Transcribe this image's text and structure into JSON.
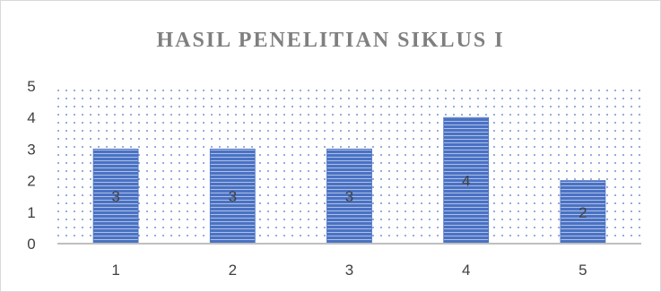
{
  "chart_data": {
    "type": "bar",
    "title": "HASIL PENELITIAN SIKLUS I",
    "categories": [
      "1",
      "2",
      "3",
      "4",
      "5"
    ],
    "values": [
      3,
      3,
      3,
      4,
      2
    ],
    "data_labels": [
      "3",
      "3",
      "3",
      "4",
      "2"
    ],
    "y_ticks": [
      "0",
      "1",
      "2",
      "3",
      "4",
      "5"
    ],
    "ylim": [
      0,
      5
    ],
    "xlabel": "",
    "ylabel": "",
    "grid": false,
    "legend": "none",
    "colors": {
      "bar_fill": "#4a72c4",
      "bar_stripe": "#ffffff",
      "plot_dots": "#4a72c4",
      "axis": "#bfbfbf",
      "title": "#7f7f7f",
      "tick_text": "#404040",
      "label_text": "#404040"
    }
  }
}
